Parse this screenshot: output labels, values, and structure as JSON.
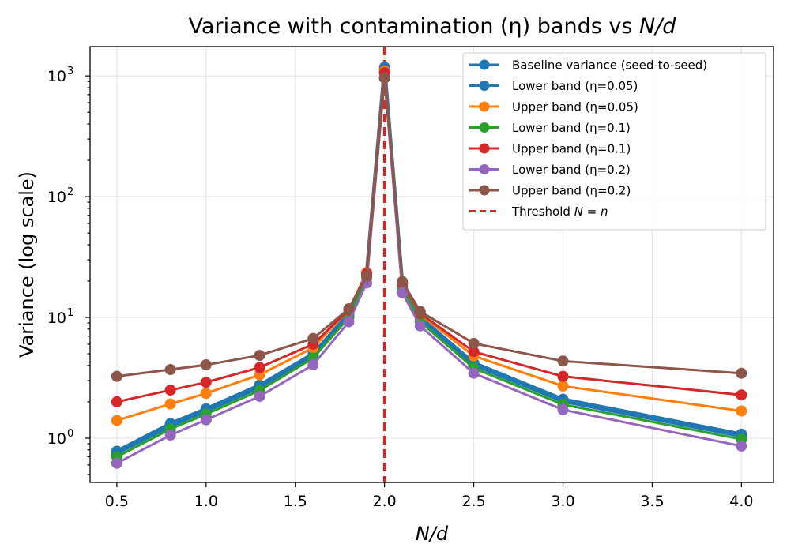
{
  "chart_data": {
    "type": "line",
    "title": "Variance with contamination (η) bands vs N/d",
    "title_parts": {
      "prefix": "Variance with contamination (η) bands vs ",
      "italic": "N/d"
    },
    "xlabel": "N/d",
    "ylabel": "Variance (log scale)",
    "xlim": [
      0.35,
      4.18
    ],
    "ylim": [
      0.43,
      1750
    ],
    "yscale": "log",
    "xticks": [
      0.5,
      1.0,
      1.5,
      2.0,
      2.5,
      3.0,
      3.5,
      4.0
    ],
    "xtick_labels": [
      "0.5",
      "1.0",
      "1.5",
      "2.0",
      "2.5",
      "3.0",
      "3.5",
      "4.0"
    ],
    "yticks": [
      1,
      10,
      100,
      1000
    ],
    "ytick_labels": [
      {
        "base": "10",
        "exp": "0"
      },
      {
        "base": "10",
        "exp": "1"
      },
      {
        "base": "10",
        "exp": "2"
      },
      {
        "base": "10",
        "exp": "3"
      }
    ],
    "grid": true,
    "legend_position": "top-right",
    "x": [
      0.5,
      0.8,
      1.0,
      1.3,
      1.6,
      1.8,
      1.9,
      2.0,
      2.1,
      2.2,
      2.5,
      3.0,
      4.0
    ],
    "series": [
      {
        "name": "Baseline variance (seed-to-seed)",
        "color": "#1f77b4",
        "width": 4.5,
        "values": [
          0.78,
          1.32,
          1.75,
          2.75,
          5.0,
          10.8,
          23.5,
          1180,
          19.0,
          10.0,
          4.2,
          2.1,
          1.08
        ]
      },
      {
        "name": "Lower band (η=0.05)",
        "color": "#1f77b4",
        "width": 3,
        "values": [
          0.74,
          1.25,
          1.66,
          2.61,
          4.8,
          10.4,
          22.5,
          1120,
          18.2,
          9.6,
          4.0,
          2.0,
          1.03
        ]
      },
      {
        "name": "Upper band (η=0.05)",
        "color": "#ff7f0e",
        "width": 3,
        "values": [
          1.4,
          1.92,
          2.35,
          3.35,
          5.6,
          11.6,
          23.5,
          1100,
          19.2,
          10.6,
          4.8,
          2.7,
          1.68
        ]
      },
      {
        "name": "Lower band (η=0.1)",
        "color": "#2ca02c",
        "width": 3,
        "values": [
          0.7,
          1.19,
          1.58,
          2.48,
          4.6,
          10.0,
          21.5,
          1060,
          17.4,
          9.2,
          3.8,
          1.9,
          0.98
        ]
      },
      {
        "name": "Upper band (η=0.1)",
        "color": "#d62728",
        "width": 3,
        "values": [
          2.0,
          2.5,
          2.9,
          3.85,
          6.0,
          11.6,
          23.0,
          1060,
          19.2,
          10.8,
          5.2,
          3.25,
          2.28
        ]
      },
      {
        "name": "Lower band (η=0.2)",
        "color": "#9467bd",
        "width": 3,
        "values": [
          0.62,
          1.06,
          1.42,
          2.22,
          4.05,
          9.2,
          19.3,
          960,
          16.0,
          8.5,
          3.45,
          1.72,
          0.86
        ]
      },
      {
        "name": "Upper band (η=0.2)",
        "color": "#8c564b",
        "width": 3,
        "values": [
          3.25,
          3.7,
          4.05,
          4.85,
          6.7,
          11.8,
          22.0,
          960,
          19.8,
          11.2,
          6.1,
          4.35,
          3.45
        ]
      }
    ],
    "threshold": {
      "x": 2.0,
      "label": "Threshold N = n",
      "label_prefix": "Threshold ",
      "label_math": "N = n",
      "color": "#d62728"
    }
  }
}
